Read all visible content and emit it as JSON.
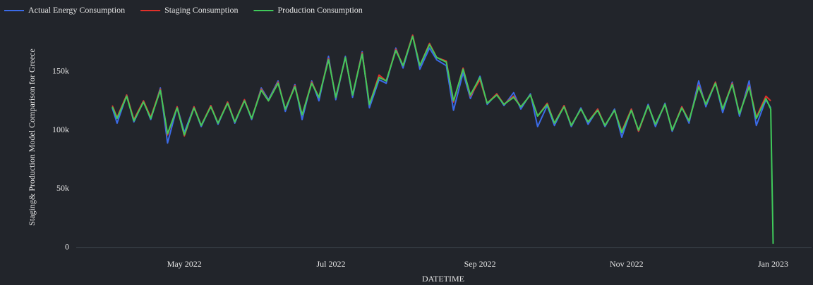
{
  "chart_data": {
    "type": "line",
    "y_label": "Staging& Production Model Comparison for Greece",
    "x_label": "DATETIME",
    "legend": "top-left",
    "grid": false,
    "xlim": [
      "2022-03-17",
      "2023-01-17"
    ],
    "xticks": [
      {
        "value": "2022-05-01",
        "label": "May 2022"
      },
      {
        "value": "2022-07-01",
        "label": "Jul 2022"
      },
      {
        "value": "2022-09-01",
        "label": "Sep 2022"
      },
      {
        "value": "2022-11-01",
        "label": "Nov 2022"
      },
      {
        "value": "2023-01-01",
        "label": "Jan 2023"
      }
    ],
    "ylim": [
      -2000,
      184000
    ],
    "yticks": [
      0,
      {
        "value": 50000,
        "label": "50k"
      },
      {
        "value": 100000,
        "label": "100k"
      },
      {
        "value": 150000,
        "label": "150k"
      }
    ],
    "x": [
      "2022-04-01",
      "2022-04-03",
      "2022-04-07",
      "2022-04-10",
      "2022-04-14",
      "2022-04-17",
      "2022-04-21",
      "2022-04-24",
      "2022-04-28",
      "2022-05-01",
      "2022-05-05",
      "2022-05-08",
      "2022-05-12",
      "2022-05-15",
      "2022-05-19",
      "2022-05-22",
      "2022-05-26",
      "2022-05-29",
      "2022-06-02",
      "2022-06-05",
      "2022-06-09",
      "2022-06-12",
      "2022-06-16",
      "2022-06-19",
      "2022-06-23",
      "2022-06-26",
      "2022-06-30",
      "2022-07-03",
      "2022-07-07",
      "2022-07-10",
      "2022-07-14",
      "2022-07-17",
      "2022-07-21",
      "2022-07-24",
      "2022-07-28",
      "2022-07-31",
      "2022-08-04",
      "2022-08-07",
      "2022-08-11",
      "2022-08-14",
      "2022-08-18",
      "2022-08-21",
      "2022-08-25",
      "2022-08-28",
      "2022-09-01",
      "2022-09-04",
      "2022-09-08",
      "2022-09-11",
      "2022-09-15",
      "2022-09-18",
      "2022-09-22",
      "2022-09-25",
      "2022-09-29",
      "2022-10-02",
      "2022-10-06",
      "2022-10-09",
      "2022-10-13",
      "2022-10-16",
      "2022-10-20",
      "2022-10-23",
      "2022-10-27",
      "2022-10-30",
      "2022-11-03",
      "2022-11-06",
      "2022-11-10",
      "2022-11-13",
      "2022-11-17",
      "2022-11-20",
      "2022-11-24",
      "2022-11-27",
      "2022-12-01",
      "2022-12-04",
      "2022-12-08",
      "2022-12-11",
      "2022-12-15",
      "2022-12-18",
      "2022-12-22",
      "2022-12-25",
      "2022-12-29",
      "2022-12-31",
      "2023-01-01"
    ],
    "series": [
      {
        "name": "Actual Energy Consumption",
        "color": "#3b6be8",
        "values": [
          119000,
          106000,
          130000,
          107000,
          125000,
          109000,
          136000,
          89000,
          120000,
          98000,
          120000,
          103000,
          121000,
          105000,
          124000,
          106000,
          126000,
          109000,
          136000,
          126000,
          142000,
          116000,
          139000,
          109000,
          142000,
          125000,
          163000,
          126000,
          163000,
          128000,
          167000,
          119000,
          143000,
          140000,
          170000,
          153000,
          181000,
          152000,
          170000,
          160000,
          155000,
          117000,
          149000,
          127000,
          146000,
          122000,
          131000,
          121000,
          132000,
          118000,
          131000,
          103000,
          121000,
          104000,
          121000,
          103000,
          119000,
          105000,
          118000,
          103000,
          118000,
          94000,
          118000,
          99000,
          122000,
          103000,
          123000,
          99000,
          120000,
          106000,
          142000,
          120000,
          141000,
          115000,
          141000,
          112000,
          142000,
          104000,
          126000,
          119000,
          null
        ]
      },
      {
        "name": "Staging Consumption",
        "color": "#e0302a",
        "values": [
          121000,
          111000,
          130000,
          109000,
          125000,
          111000,
          135000,
          96000,
          120000,
          95000,
          120000,
          104000,
          121000,
          106000,
          124000,
          107000,
          126000,
          110000,
          135000,
          125000,
          141000,
          118000,
          138000,
          113000,
          141000,
          128000,
          161000,
          128000,
          162000,
          130000,
          166000,
          122000,
          147000,
          142000,
          169000,
          155000,
          181000,
          155000,
          174000,
          162000,
          159000,
          124000,
          153000,
          129000,
          143000,
          123000,
          131000,
          122000,
          129000,
          120000,
          130000,
          112000,
          123000,
          106000,
          121000,
          104000,
          118000,
          107000,
          118000,
          104000,
          117000,
          99000,
          118000,
          99000,
          121000,
          105000,
          122000,
          100000,
          120000,
          108000,
          138000,
          122000,
          141000,
          118000,
          140000,
          114000,
          138000,
          111000,
          129000,
          125000,
          null
        ]
      },
      {
        "name": "Production Consumption",
        "color": "#3fca5a",
        "values": [
          120000,
          110000,
          129000,
          108000,
          124000,
          110000,
          134000,
          97000,
          119000,
          96000,
          119000,
          104000,
          120000,
          106000,
          123000,
          107000,
          125000,
          110000,
          134000,
          125000,
          140000,
          118000,
          137000,
          113000,
          140000,
          128000,
          160000,
          128000,
          162000,
          130000,
          165000,
          122000,
          145000,
          142000,
          168000,
          155000,
          180000,
          155000,
          173000,
          162000,
          158000,
          125000,
          152000,
          130000,
          145000,
          123000,
          130000,
          122000,
          128000,
          120000,
          130000,
          112000,
          122000,
          106000,
          120000,
          104000,
          118000,
          107000,
          117000,
          104000,
          117000,
          98000,
          117000,
          100000,
          121000,
          105000,
          122000,
          100000,
          119000,
          108000,
          137000,
          122000,
          140000,
          118000,
          139000,
          114000,
          137000,
          110000,
          127000,
          118000,
          3000
        ]
      }
    ]
  }
}
